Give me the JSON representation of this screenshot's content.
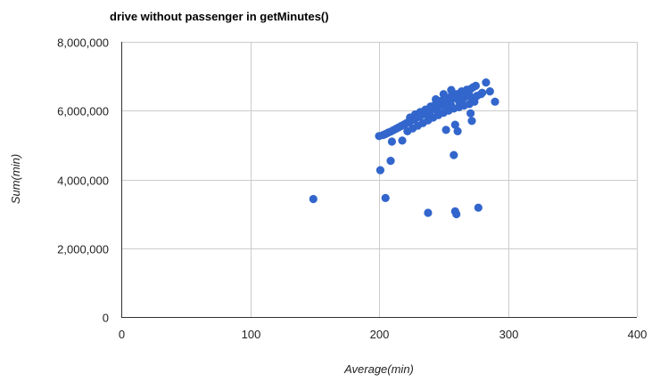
{
  "chart_data": {
    "type": "scatter",
    "title": "drive without passenger in getMinutes()",
    "xlabel": "Average(min)",
    "ylabel": "Sum(min)",
    "xlim": [
      0,
      400
    ],
    "ylim": [
      0,
      8000000
    ],
    "x_ticks": [
      0,
      100,
      200,
      300,
      400
    ],
    "x_tick_labels": [
      "0",
      "100",
      "200",
      "300",
      "400"
    ],
    "y_ticks": [
      0,
      2000000,
      4000000,
      6000000,
      8000000
    ],
    "y_tick_labels": [
      "0",
      "2,000,000",
      "4,000,000",
      "6,000,000",
      "8,000,000"
    ],
    "grid": true,
    "colors": {
      "points": "#3366cc",
      "grid": "#cccccc",
      "axis": "#333333"
    },
    "points": [
      [
        149,
        3430000
      ],
      [
        201,
        4270000
      ],
      [
        205,
        3460000
      ],
      [
        209,
        4540000
      ],
      [
        238,
        3030000
      ],
      [
        259,
        3070000
      ],
      [
        260,
        2990000
      ],
      [
        277,
        3180000
      ],
      [
        258,
        4710000
      ],
      [
        252,
        5440000
      ],
      [
        261,
        5400000
      ],
      [
        259,
        5590000
      ],
      [
        200,
        5260000
      ],
      [
        203,
        5290000
      ],
      [
        205,
        5320000
      ],
      [
        207,
        5360000
      ],
      [
        209,
        5390000
      ],
      [
        211,
        5430000
      ],
      [
        213,
        5470000
      ],
      [
        215,
        5510000
      ],
      [
        217,
        5550000
      ],
      [
        219,
        5590000
      ],
      [
        221,
        5630000
      ],
      [
        223,
        5670000
      ],
      [
        225,
        5710000
      ],
      [
        227,
        5750000
      ],
      [
        229,
        5790000
      ],
      [
        231,
        5830000
      ],
      [
        233,
        5870000
      ],
      [
        235,
        5910000
      ],
      [
        237,
        5950000
      ],
      [
        239,
        5990000
      ],
      [
        241,
        6030000
      ],
      [
        243,
        6070000
      ],
      [
        245,
        6110000
      ],
      [
        247,
        6150000
      ],
      [
        249,
        6190000
      ],
      [
        251,
        6230000
      ],
      [
        253,
        6270000
      ],
      [
        255,
        6310000
      ],
      [
        257,
        6350000
      ],
      [
        259,
        6390000
      ],
      [
        261,
        6430000
      ],
      [
        263,
        6470000
      ],
      [
        265,
        6510000
      ],
      [
        267,
        6550000
      ],
      [
        269,
        6590000
      ],
      [
        271,
        6630000
      ],
      [
        273,
        6680000
      ],
      [
        275,
        6720000
      ],
      [
        210,
        5100000
      ],
      [
        218,
        5130000
      ],
      [
        222,
        5400000
      ],
      [
        226,
        5480000
      ],
      [
        230,
        5560000
      ],
      [
        234,
        5640000
      ],
      [
        238,
        5720000
      ],
      [
        242,
        5800000
      ],
      [
        246,
        5870000
      ],
      [
        250,
        5940000
      ],
      [
        254,
        6000000
      ],
      [
        258,
        6060000
      ],
      [
        262,
        6100000
      ],
      [
        266,
        6150000
      ],
      [
        270,
        6190000
      ],
      [
        274,
        6260000
      ],
      [
        224,
        5800000
      ],
      [
        228,
        5890000
      ],
      [
        232,
        5960000
      ],
      [
        236,
        6030000
      ],
      [
        240,
        6120000
      ],
      [
        244,
        6200000
      ],
      [
        248,
        6280000
      ],
      [
        252,
        6360000
      ],
      [
        256,
        6420000
      ],
      [
        260,
        6480000
      ],
      [
        264,
        6560000
      ],
      [
        268,
        6610000
      ],
      [
        240,
        5830000
      ],
      [
        246,
        5950000
      ],
      [
        252,
        6060000
      ],
      [
        256,
        6150000
      ],
      [
        262,
        6270000
      ],
      [
        266,
        6380000
      ],
      [
        270,
        6450000
      ],
      [
        272,
        6350000
      ],
      [
        271,
        5920000
      ],
      [
        272,
        5700000
      ],
      [
        276,
        6430000
      ],
      [
        280,
        6520000
      ],
      [
        283,
        6820000
      ],
      [
        286,
        6560000
      ],
      [
        290,
        6260000
      ],
      [
        279,
        6480000
      ],
      [
        244,
        6330000
      ],
      [
        250,
        6480000
      ],
      [
        256,
        6600000
      ],
      [
        268,
        6530000
      ]
    ]
  }
}
